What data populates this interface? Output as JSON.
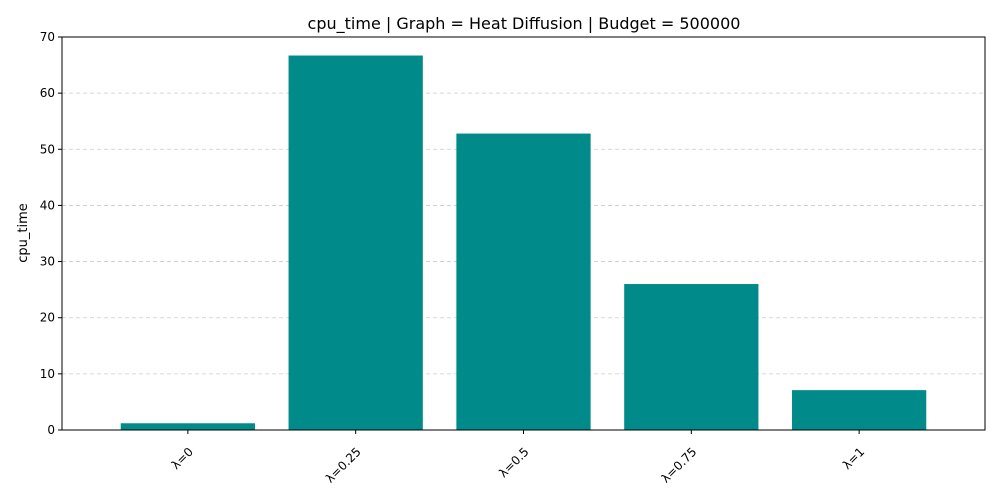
{
  "chart_data": {
    "type": "bar",
    "title": "cpu_time | Graph = Heat Diffusion | Budget = 500000",
    "xlabel": "",
    "ylabel": "cpu_time",
    "categories": [
      "λ=0",
      "λ=0.25",
      "λ=0.5",
      "λ=0.75",
      "λ=1"
    ],
    "values": [
      1.2,
      66.7,
      52.8,
      26.0,
      7.1
    ],
    "ylim": [
      0,
      70
    ],
    "yticks": [
      0,
      10,
      20,
      30,
      40,
      50,
      60,
      70
    ],
    "grid": "y-dashed",
    "legend": "none",
    "bar_color": "#008b8a",
    "grid_color": "#cccccc"
  }
}
